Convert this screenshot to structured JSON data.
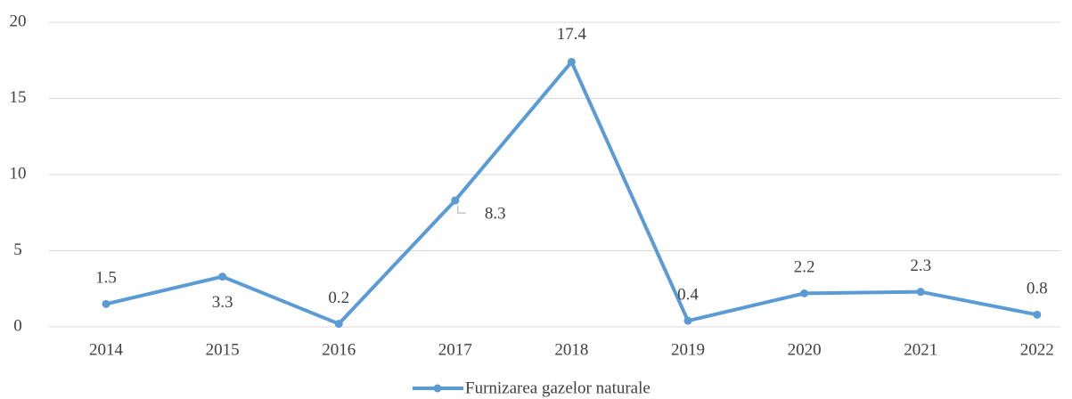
{
  "chart_data": {
    "type": "line",
    "categories": [
      "2014",
      "2015",
      "2016",
      "2017",
      "2018",
      "2019",
      "2020",
      "2021",
      "2022"
    ],
    "series": [
      {
        "name": "Furnizarea gazelor naturale",
        "color": "#5b9bd5",
        "values": [
          1.5,
          3.3,
          0.2,
          8.3,
          17.4,
          0.4,
          2.2,
          2.3,
          0.8
        ]
      }
    ],
    "ylim": [
      0,
      20
    ],
    "yticks": [
      0,
      5,
      10,
      15,
      20
    ],
    "grid": true,
    "legend": "bottom"
  }
}
